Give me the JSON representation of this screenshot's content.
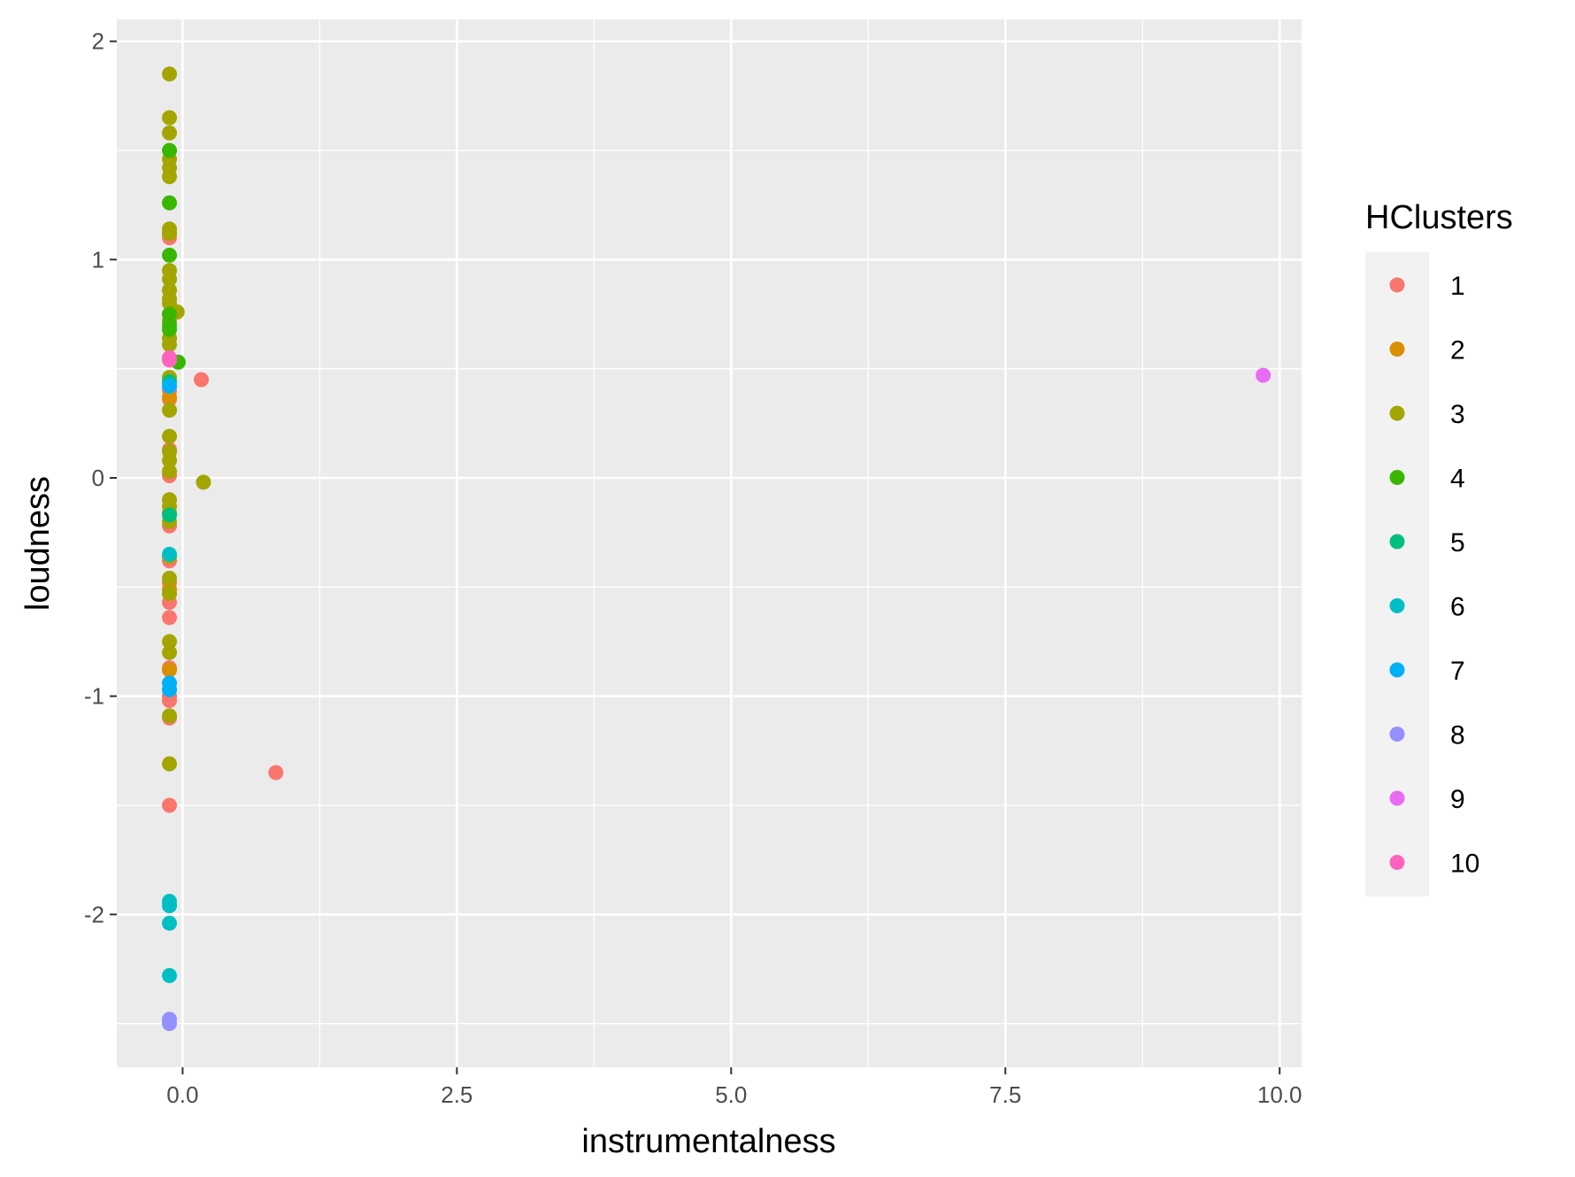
{
  "chart_data": {
    "type": "scatter",
    "title": "",
    "xlabel": "instrumentalness",
    "ylabel": "loudness",
    "xlim": [
      -0.6,
      10.2
    ],
    "ylim": [
      -2.7,
      2.1
    ],
    "x_ticks": [
      0.0,
      2.5,
      5.0,
      7.5,
      10.0
    ],
    "x_tick_labels": [
      "0.0",
      "2.5",
      "5.0",
      "7.5",
      "10.0"
    ],
    "y_ticks": [
      -2,
      -1,
      0,
      1,
      2
    ],
    "y_tick_labels": [
      "-2",
      "-1",
      "0",
      "1",
      "2"
    ],
    "grid": true,
    "legend": {
      "title": "HClusters",
      "position": "right",
      "entries": [
        "1",
        "2",
        "3",
        "4",
        "5",
        "6",
        "7",
        "8",
        "9",
        "10"
      ]
    },
    "colors": {
      "1": "#F8766D",
      "2": "#D89000",
      "3": "#A3A500",
      "4": "#39B600",
      "5": "#00BF7D",
      "6": "#00BFC4",
      "7": "#00B0F6",
      "8": "#9590FF",
      "9": "#E76BF3",
      "10": "#FF62BC"
    },
    "series": [
      {
        "name": "1",
        "x": [
          -0.12,
          -0.12,
          -0.12,
          -0.12,
          -0.12,
          -0.12,
          -0.12,
          -0.12,
          -0.12,
          -0.12,
          -0.12,
          -0.12,
          -0.12,
          -0.12,
          -0.12,
          0.17,
          0.85
        ],
        "y": [
          1.1,
          0.4,
          0.36,
          0.13,
          0.01,
          -0.22,
          -0.38,
          -0.48,
          -0.57,
          -0.64,
          -0.87,
          -1.0,
          -1.02,
          -1.1,
          -1.5,
          0.45,
          -1.35
        ]
      },
      {
        "name": "2",
        "x": [
          -0.12,
          -0.12,
          -0.12,
          -0.12,
          -0.12
        ],
        "y": [
          0.75,
          0.37,
          -0.51,
          -0.88,
          1.12
        ]
      },
      {
        "name": "3",
        "x": [
          -0.12,
          -0.12,
          -0.12,
          -0.12,
          -0.12,
          -0.12,
          -0.12,
          -0.12,
          -0.12,
          -0.12,
          -0.12,
          -0.12,
          -0.12,
          -0.12,
          -0.12,
          -0.12,
          -0.12,
          -0.12,
          -0.12,
          -0.12,
          -0.12,
          -0.12,
          -0.12,
          -0.12,
          -0.12,
          -0.12,
          -0.12,
          -0.12,
          -0.12,
          -0.12,
          -0.12,
          -0.12,
          -0.12,
          -0.05,
          0.19
        ],
        "y": [
          1.85,
          1.65,
          1.58,
          1.46,
          1.42,
          1.38,
          1.14,
          1.12,
          0.95,
          0.91,
          0.86,
          0.82,
          0.8,
          0.72,
          0.64,
          0.61,
          0.46,
          0.31,
          0.19,
          0.12,
          0.08,
          0.03,
          -0.1,
          -0.13,
          -0.16,
          -0.2,
          -0.36,
          -0.46,
          -0.53,
          -0.75,
          -0.8,
          -1.09,
          -1.31,
          0.76,
          -0.02
        ]
      },
      {
        "name": "4",
        "x": [
          -0.12,
          -0.12,
          -0.12,
          -0.12,
          -0.12,
          -0.12,
          -0.04
        ],
        "y": [
          1.5,
          1.26,
          1.02,
          0.7,
          0.75,
          0.68,
          0.53
        ]
      },
      {
        "name": "5",
        "x": [
          -0.12,
          -0.12
        ],
        "y": [
          0.44,
          -0.17
        ]
      },
      {
        "name": "6",
        "x": [
          -0.12,
          -0.12,
          -0.12,
          -0.12,
          -0.12
        ],
        "y": [
          -0.35,
          -1.94,
          -1.96,
          -2.04,
          -2.28
        ]
      },
      {
        "name": "7",
        "x": [
          -0.12,
          -0.12,
          -0.12
        ],
        "y": [
          0.42,
          -0.94,
          -0.97
        ]
      },
      {
        "name": "8",
        "x": [
          -0.12,
          -0.12
        ],
        "y": [
          -2.48,
          -2.5
        ]
      },
      {
        "name": "9",
        "x": [
          9.85
        ],
        "y": [
          0.47
        ]
      },
      {
        "name": "10",
        "x": [
          -0.12,
          -0.12
        ],
        "y": [
          0.55,
          0.54
        ]
      }
    ]
  }
}
